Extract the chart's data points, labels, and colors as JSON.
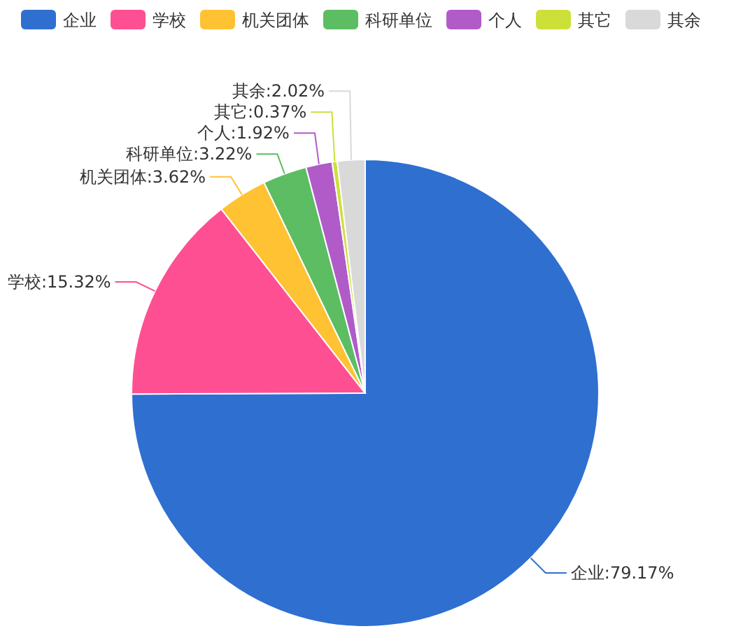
{
  "chart_data": {
    "type": "pie",
    "categories": [
      "企业",
      "学校",
      "机关团体",
      "科研单位",
      "个人",
      "其它",
      "其余"
    ],
    "values": [
      79.17,
      15.32,
      3.62,
      3.22,
      1.92,
      0.37,
      2.02
    ],
    "colors": [
      "#2f6fd0",
      "#ff4f93",
      "#ffc233",
      "#5cbd63",
      "#b15bc9",
      "#cde03a",
      "#d9d9d9"
    ],
    "value_labels": [
      "企业:79.17%",
      "学校:15.32%",
      "机关团体:3.62%",
      "科研单位:3.22%",
      "个人:1.92%",
      "其它:0.37%",
      "其余:2.02%"
    ],
    "legend": "top left"
  }
}
